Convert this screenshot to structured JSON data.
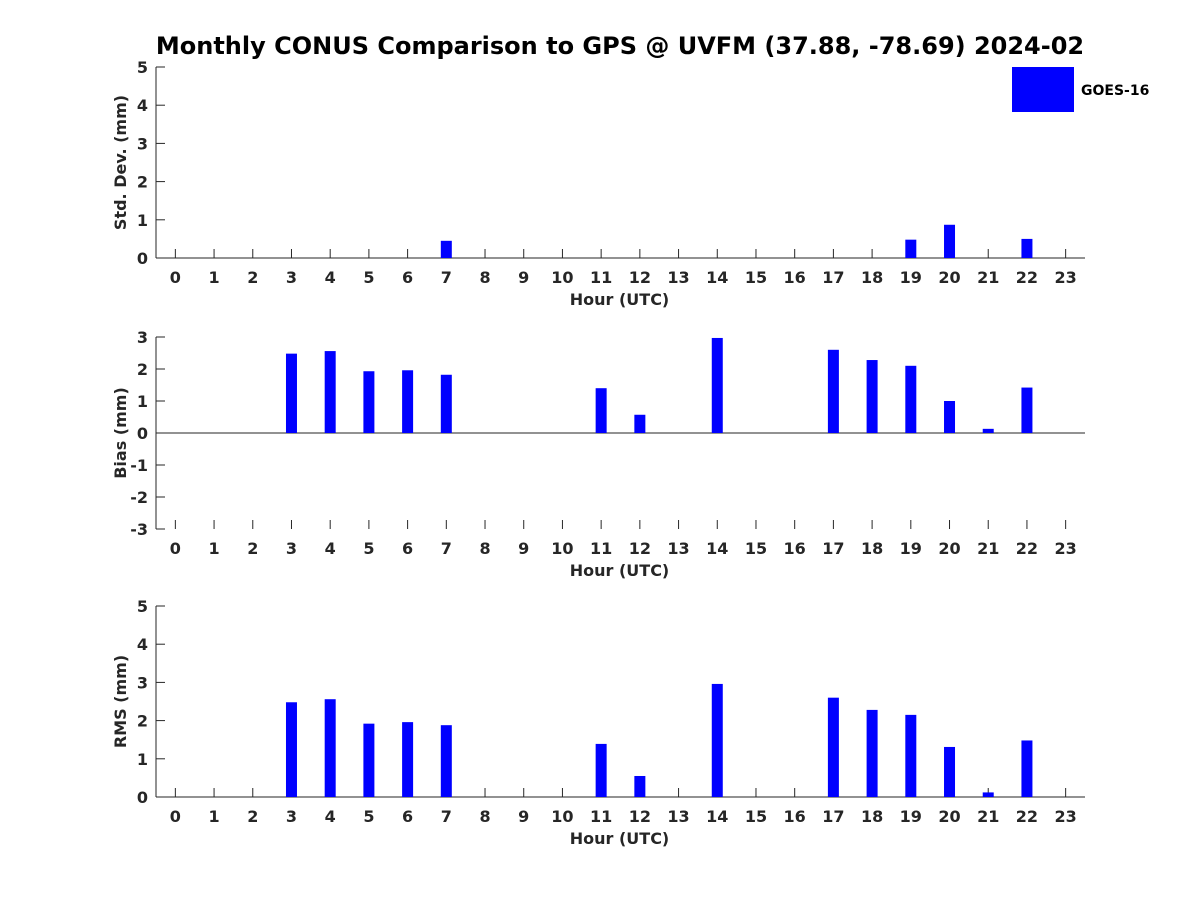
{
  "figure": {
    "title": "Monthly CONUS Comparison to GPS @ UVFM (37.88, -78.69) 2024-02"
  },
  "legend": {
    "label": "GOES-16",
    "color": "#0000ff",
    "placement": "top-right"
  },
  "chart_data": [
    {
      "type": "bar",
      "xlabel": "Hour (UTC)",
      "ylabel": "Std. Dev. (mm)",
      "ylim": [
        0,
        5
      ],
      "yticks": [
        0,
        1,
        2,
        3,
        4,
        5
      ],
      "grid": false,
      "categories": [
        0,
        1,
        2,
        3,
        4,
        5,
        6,
        7,
        8,
        9,
        10,
        11,
        12,
        13,
        14,
        15,
        16,
        17,
        18,
        19,
        20,
        21,
        22,
        23
      ],
      "series": [
        {
          "name": "GOES-16",
          "values": [
            null,
            null,
            null,
            0,
            0,
            0,
            0,
            0.45,
            null,
            null,
            null,
            0,
            0,
            null,
            0,
            null,
            null,
            0,
            0,
            0.48,
            0.87,
            0,
            0.5,
            null
          ]
        }
      ]
    },
    {
      "type": "bar",
      "xlabel": "Hour (UTC)",
      "ylabel": "Bias (mm)",
      "ylim": [
        -3,
        3
      ],
      "yticks": [
        -3,
        -2,
        -1,
        0,
        1,
        2,
        3
      ],
      "grid": false,
      "categories": [
        0,
        1,
        2,
        3,
        4,
        5,
        6,
        7,
        8,
        9,
        10,
        11,
        12,
        13,
        14,
        15,
        16,
        17,
        18,
        19,
        20,
        21,
        22,
        23
      ],
      "series": [
        {
          "name": "GOES-16",
          "values": [
            null,
            null,
            null,
            2.48,
            2.56,
            1.93,
            1.96,
            1.82,
            null,
            null,
            null,
            1.4,
            0.57,
            null,
            2.97,
            null,
            null,
            2.6,
            2.28,
            2.1,
            1.0,
            0.13,
            1.42,
            null
          ]
        }
      ]
    },
    {
      "type": "bar",
      "xlabel": "Hour (UTC)",
      "ylabel": "RMS (mm)",
      "ylim": [
        0,
        5
      ],
      "yticks": [
        0,
        1,
        2,
        3,
        4,
        5
      ],
      "grid": false,
      "categories": [
        0,
        1,
        2,
        3,
        4,
        5,
        6,
        7,
        8,
        9,
        10,
        11,
        12,
        13,
        14,
        15,
        16,
        17,
        18,
        19,
        20,
        21,
        22,
        23
      ],
      "series": [
        {
          "name": "GOES-16",
          "values": [
            null,
            null,
            null,
            2.48,
            2.56,
            1.92,
            1.96,
            1.88,
            null,
            null,
            null,
            1.39,
            0.55,
            null,
            2.96,
            null,
            null,
            2.6,
            2.28,
            2.15,
            1.31,
            0.12,
            1.48,
            null
          ]
        }
      ]
    }
  ]
}
